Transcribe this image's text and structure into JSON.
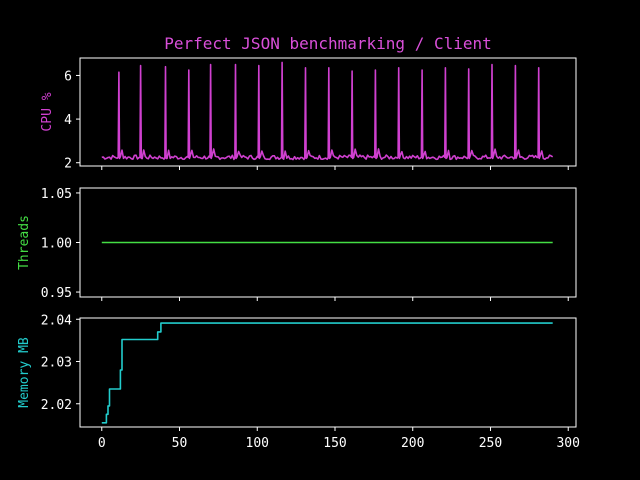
{
  "chart_data": {
    "type": "line",
    "title": "Perfect JSON benchmarking / Client",
    "title_color": "#d94fd9",
    "x": {
      "label": "",
      "lim": [
        -14,
        305
      ],
      "ticks": [
        0,
        50,
        100,
        150,
        200,
        250,
        300
      ],
      "tick_labels": [
        "0",
        "50",
        "100",
        "150",
        "200",
        "250",
        "300"
      ]
    },
    "panels": [
      {
        "name": "cpu",
        "ylabel": "CPU %",
        "color": "#d040d0",
        "ylim": [
          1.85,
          6.8
        ],
        "yticks": [
          2,
          4,
          6
        ],
        "ytick_labels": [
          "2",
          "4",
          "6"
        ],
        "series": {
          "baseline": 2.25,
          "x_end": 290,
          "spikes": [
            {
              "x": 11,
              "y": 6.15
            },
            {
              "x": 25,
              "y": 6.45
            },
            {
              "x": 41,
              "y": 6.4
            },
            {
              "x": 56,
              "y": 6.25
            },
            {
              "x": 70,
              "y": 6.5
            },
            {
              "x": 86,
              "y": 6.5
            },
            {
              "x": 101,
              "y": 6.45
            },
            {
              "x": 116,
              "y": 6.6
            },
            {
              "x": 131,
              "y": 6.35
            },
            {
              "x": 146,
              "y": 6.35
            },
            {
              "x": 161,
              "y": 6.2
            },
            {
              "x": 176,
              "y": 6.25
            },
            {
              "x": 191,
              "y": 6.35
            },
            {
              "x": 206,
              "y": 6.25
            },
            {
              "x": 221,
              "y": 6.35
            },
            {
              "x": 236,
              "y": 6.3
            },
            {
              "x": 251,
              "y": 6.5
            },
            {
              "x": 266,
              "y": 6.45
            },
            {
              "x": 281,
              "y": 6.35
            }
          ]
        }
      },
      {
        "name": "threads",
        "ylabel": "Threads",
        "color": "#44dd44",
        "ylim": [
          0.945,
          1.055
        ],
        "yticks": [
          0.95,
          1.0,
          1.05
        ],
        "ytick_labels": [
          "0.95",
          "1.00",
          "1.05"
        ],
        "series": {
          "x": [
            0,
            290
          ],
          "y": [
            1.0,
            1.0
          ]
        }
      },
      {
        "name": "memory",
        "ylabel": "Memory MB",
        "color": "#22cccc",
        "ylim": [
          2.0145,
          2.0403
        ],
        "yticks": [
          2.02,
          2.03,
          2.04
        ],
        "ytick_labels": [
          "2.02",
          "2.03",
          "2.04"
        ],
        "series": {
          "x": [
            0,
            3,
            3,
            4,
            4,
            5,
            5,
            12,
            12,
            13,
            13,
            36,
            36,
            38,
            38,
            290
          ],
          "y": [
            2.0155,
            2.0155,
            2.0175,
            2.0175,
            2.0195,
            2.0195,
            2.0235,
            2.0235,
            2.028,
            2.028,
            2.0352,
            2.0352,
            2.037,
            2.037,
            2.0391,
            2.0391
          ]
        }
      }
    ]
  }
}
